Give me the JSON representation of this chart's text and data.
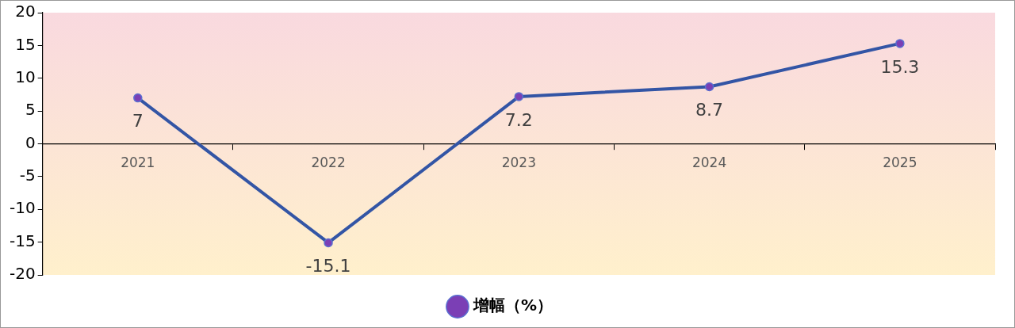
{
  "chart_data": {
    "type": "line",
    "categories": [
      "2021",
      "2022",
      "2023",
      "2024",
      "2025"
    ],
    "series": [
      {
        "name": "增幅（%）",
        "color": "#3355a5",
        "values": [
          7,
          -15.1,
          7.2,
          8.7,
          15.3
        ]
      }
    ],
    "ylim": [
      -20,
      20
    ],
    "yticks": [
      -20,
      -15,
      -10,
      -5,
      0,
      5,
      10,
      15,
      20
    ],
    "grid": false,
    "legend": "bottom",
    "marker": "circle",
    "line_style": "solid",
    "data_labels": true
  }
}
